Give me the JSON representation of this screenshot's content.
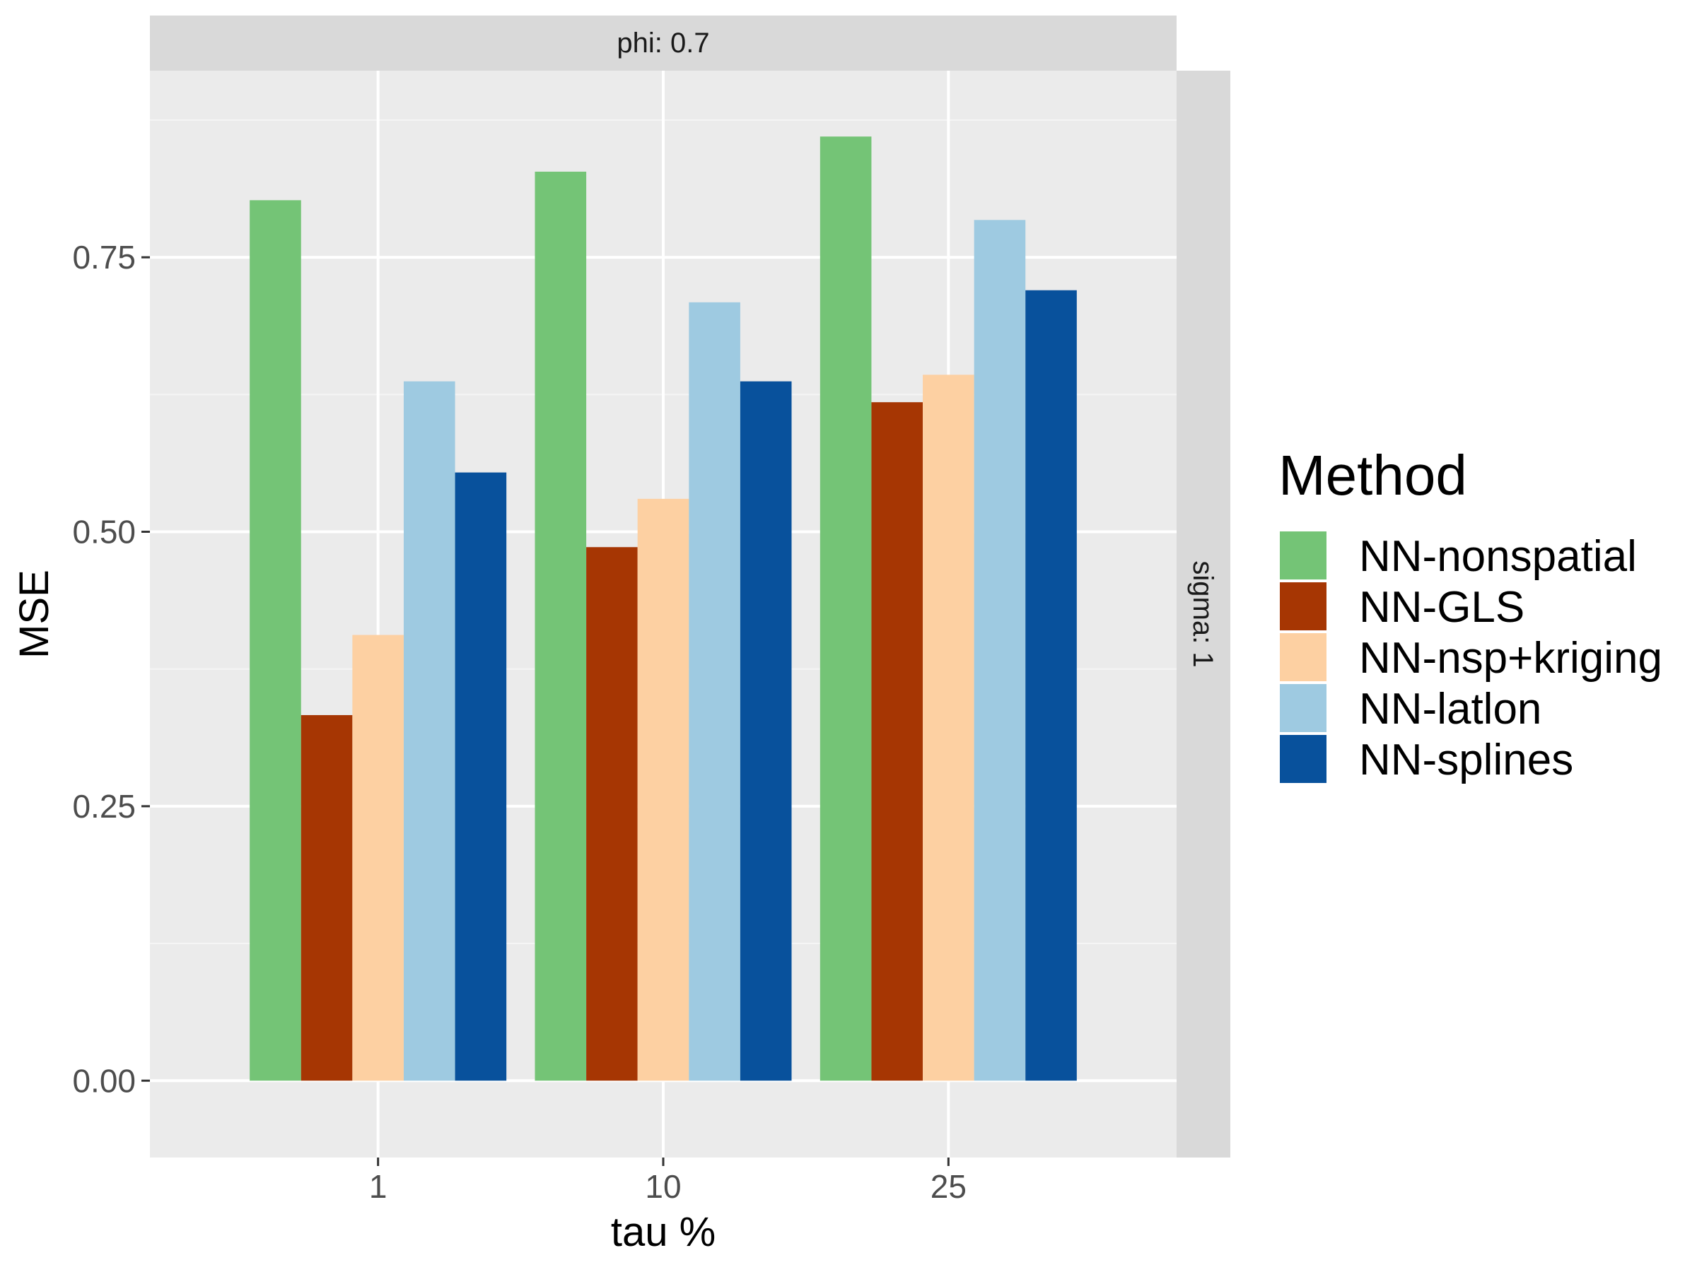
{
  "chart_data": {
    "type": "bar",
    "title": "",
    "xlabel": "tau %",
    "ylabel": "MSE",
    "facet_top": "phi: 0.7",
    "facet_right": "sigma: 1",
    "categories": [
      "1",
      "10",
      "25"
    ],
    "ylim": [
      -0.07,
      0.92
    ],
    "yticks": [
      0.0,
      0.25,
      0.5,
      0.75
    ],
    "ytick_labels": [
      "0.00",
      "0.25",
      "0.50",
      "0.75"
    ],
    "legend_title": "Method",
    "legend_position": "right",
    "series": [
      {
        "name": "NN-nonspatial",
        "color": "#74c476",
        "values": [
          0.802,
          0.828,
          0.86
        ]
      },
      {
        "name": "NN-GLS",
        "color": "#a63603",
        "values": [
          0.333,
          0.486,
          0.618
        ]
      },
      {
        "name": "NN-nsp+kriging",
        "color": "#fdd0a2",
        "values": [
          0.406,
          0.53,
          0.643
        ]
      },
      {
        "name": "NN-latlon",
        "color": "#9ecae1",
        "values": [
          0.637,
          0.709,
          0.784
        ]
      },
      {
        "name": "NN-splines",
        "color": "#08519c",
        "values": [
          0.554,
          0.637,
          0.72
        ]
      }
    ]
  }
}
